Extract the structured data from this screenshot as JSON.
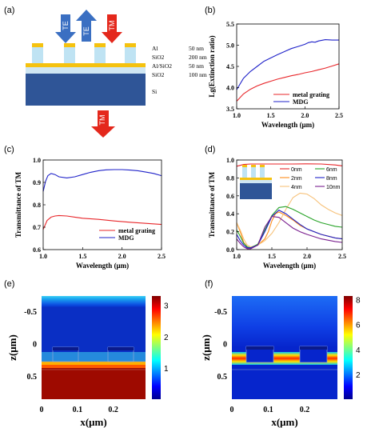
{
  "colors": {
    "red": "#e8262a",
    "blue": "#1f22c9",
    "arrow_blue": "#3a6fc2",
    "arrow_red": "#e4281c",
    "gold": "#f5c20f",
    "light_blue": "#bfe3f3",
    "sio2_band": "#cfe6f3",
    "si": "#2f5597",
    "orange": "#ff8c1a",
    "green": "#27a327",
    "light_orange": "#f7c27a",
    "purple": "#7a1f8f"
  },
  "panel_a": {
    "label": "(a)",
    "arrows": [
      "TE",
      "TE",
      "TM"
    ],
    "bottom_arrow": "TM",
    "layers": [
      {
        "name": "Al",
        "value": "50 nm"
      },
      {
        "name": "SiO2",
        "value": "200 nm"
      },
      {
        "name": "Al/SiO2",
        "value": "50 nm"
      },
      {
        "name": "SiO2",
        "value": "100 nm"
      },
      {
        "name": "Si",
        "value": ""
      }
    ]
  },
  "chart_data": [
    {
      "id": "b",
      "type": "line",
      "label": "(b)",
      "xlabel": "Wavelength (μm)",
      "ylabel": "Lg(Extinction ratio)",
      "xlim": [
        1.0,
        2.5
      ],
      "ylim": [
        3.5,
        5.5
      ],
      "xticks": [
        "1.0",
        "1.5",
        "2.0",
        "2.5"
      ],
      "yticks": [
        "3.5",
        "4.0",
        "4.5",
        "5.0",
        "5.5"
      ],
      "legend": "bottom-right",
      "series": [
        {
          "name": "metal grating",
          "color": "red",
          "x": [
            1.0,
            1.1,
            1.2,
            1.3,
            1.4,
            1.5,
            1.6,
            1.7,
            1.8,
            1.9,
            2.0,
            2.1,
            2.2,
            2.3,
            2.4,
            2.5
          ],
          "y": [
            3.68,
            3.85,
            3.96,
            4.04,
            4.1,
            4.15,
            4.2,
            4.24,
            4.28,
            4.31,
            4.35,
            4.38,
            4.42,
            4.46,
            4.51,
            4.56
          ]
        },
        {
          "name": "MDG",
          "color": "blue",
          "x": [
            1.0,
            1.1,
            1.2,
            1.3,
            1.4,
            1.5,
            1.6,
            1.7,
            1.8,
            1.9,
            2.0,
            2.05,
            2.1,
            2.15,
            2.2,
            2.3,
            2.4,
            2.5
          ],
          "y": [
            3.95,
            4.22,
            4.38,
            4.5,
            4.62,
            4.7,
            4.78,
            4.85,
            4.92,
            4.97,
            5.02,
            5.06,
            5.08,
            5.07,
            5.1,
            5.13,
            5.12,
            5.12
          ]
        }
      ]
    },
    {
      "id": "c",
      "type": "line",
      "label": "(c)",
      "xlabel": "Wavelength (μm)",
      "ylabel": "Transmittance of TM",
      "xlim": [
        1.0,
        2.5
      ],
      "ylim": [
        0.6,
        1.0
      ],
      "xticks": [
        "1.0",
        "1.5",
        "2.0",
        "2.5"
      ],
      "yticks": [
        "0.6",
        "0.7",
        "0.8",
        "0.9",
        "1.0"
      ],
      "legend": "bottom-right",
      "series": [
        {
          "name": "metal grating",
          "color": "red",
          "x": [
            1.0,
            1.05,
            1.1,
            1.15,
            1.2,
            1.3,
            1.4,
            1.5,
            1.7,
            1.9,
            2.1,
            2.3,
            2.5
          ],
          "y": [
            0.69,
            0.73,
            0.745,
            0.75,
            0.752,
            0.75,
            0.745,
            0.74,
            0.735,
            0.728,
            0.722,
            0.717,
            0.712
          ]
        },
        {
          "name": "MDG",
          "color": "blue",
          "x": [
            1.0,
            1.03,
            1.06,
            1.1,
            1.15,
            1.2,
            1.3,
            1.4,
            1.5,
            1.6,
            1.7,
            1.8,
            1.9,
            2.0,
            2.1,
            2.2,
            2.3,
            2.4,
            2.5
          ],
          "y": [
            0.86,
            0.905,
            0.93,
            0.94,
            0.935,
            0.925,
            0.92,
            0.925,
            0.935,
            0.945,
            0.952,
            0.956,
            0.957,
            0.957,
            0.955,
            0.952,
            0.946,
            0.94,
            0.93
          ]
        }
      ]
    },
    {
      "id": "d",
      "type": "line",
      "label": "(d)",
      "xlabel": "Wavelength (μm)",
      "ylabel": "Transmittance of TM",
      "xlim": [
        1.0,
        2.5
      ],
      "ylim": [
        0.0,
        1.0
      ],
      "xticks": [
        "1.0",
        "1.5",
        "2.0",
        "2.5"
      ],
      "yticks": [
        "0.0",
        "0.2",
        "0.4",
        "0.6",
        "0.8",
        "1.0"
      ],
      "legend": "top-right",
      "series": [
        {
          "name": "0nm",
          "color": "red",
          "x": [
            1.0,
            1.1,
            1.2,
            1.4,
            1.6,
            1.8,
            2.0,
            2.2,
            2.4,
            2.5
          ],
          "y": [
            0.93,
            0.95,
            0.955,
            0.955,
            0.955,
            0.955,
            0.957,
            0.955,
            0.945,
            0.935
          ]
        },
        {
          "name": "2nm",
          "color": "orange",
          "x": [
            1.0,
            1.05,
            1.1,
            1.15,
            1.2,
            1.3,
            1.4,
            1.45,
            1.5,
            1.55,
            1.6,
            1.7,
            1.8,
            1.9,
            2.0,
            2.1,
            2.2,
            2.3,
            2.4,
            2.5
          ],
          "y": [
            0.3,
            0.2,
            0.08,
            0.03,
            0.02,
            0.05,
            0.12,
            0.2,
            0.32,
            0.4,
            0.42,
            0.38,
            0.33,
            0.27,
            0.23,
            0.2,
            0.17,
            0.15,
            0.13,
            0.12
          ]
        },
        {
          "name": "4nm",
          "color": "light_orange",
          "x": [
            1.0,
            1.05,
            1.1,
            1.15,
            1.2,
            1.3,
            1.4,
            1.5,
            1.6,
            1.7,
            1.8,
            1.9,
            2.0,
            2.1,
            2.2,
            2.3,
            2.4,
            2.5
          ],
          "y": [
            0.3,
            0.22,
            0.12,
            0.05,
            0.03,
            0.05,
            0.1,
            0.18,
            0.3,
            0.45,
            0.58,
            0.63,
            0.62,
            0.57,
            0.5,
            0.45,
            0.41,
            0.38
          ]
        },
        {
          "name": "6nm",
          "color": "green",
          "x": [
            1.0,
            1.05,
            1.1,
            1.15,
            1.2,
            1.3,
            1.4,
            1.5,
            1.6,
            1.7,
            1.8,
            1.9,
            2.0,
            2.1,
            2.2,
            2.3,
            2.4,
            2.5
          ],
          "y": [
            0.22,
            0.15,
            0.07,
            0.03,
            0.02,
            0.06,
            0.22,
            0.38,
            0.47,
            0.48,
            0.45,
            0.41,
            0.37,
            0.33,
            0.3,
            0.28,
            0.26,
            0.25
          ]
        },
        {
          "name": "8nm",
          "color": "blue",
          "x": [
            1.0,
            1.05,
            1.1,
            1.15,
            1.2,
            1.3,
            1.4,
            1.5,
            1.6,
            1.7,
            1.8,
            1.9,
            2.0,
            2.2,
            2.4,
            2.5
          ],
          "y": [
            0.17,
            0.1,
            0.05,
            0.02,
            0.02,
            0.05,
            0.2,
            0.37,
            0.44,
            0.4,
            0.34,
            0.28,
            0.23,
            0.17,
            0.13,
            0.12
          ]
        },
        {
          "name": "10nm",
          "color": "purple",
          "x": [
            1.0,
            1.05,
            1.1,
            1.15,
            1.2,
            1.3,
            1.4,
            1.5,
            1.6,
            1.7,
            1.8,
            1.9,
            2.0,
            2.2,
            2.4,
            2.5
          ],
          "y": [
            0.12,
            0.07,
            0.03,
            0.01,
            0.01,
            0.05,
            0.25,
            0.37,
            0.36,
            0.3,
            0.24,
            0.2,
            0.17,
            0.12,
            0.09,
            0.08
          ]
        }
      ]
    },
    {
      "id": "e",
      "type": "heatmap",
      "label": "(e)",
      "xlabel": "x(μm)",
      "ylabel": "z(μm)",
      "xlim": [
        0,
        0.29
      ],
      "ylim": [
        -0.75,
        0.85
      ],
      "xticks": [
        "0",
        "0.1",
        "0.2"
      ],
      "yticks": [
        "-0.5",
        "0",
        "0.5"
      ],
      "colorbar_ticks": [
        "1",
        "2",
        "3"
      ],
      "colorbar_range": [
        0,
        3.3
      ]
    },
    {
      "id": "f",
      "type": "heatmap",
      "label": "(f)",
      "xlabel": "x(μm)",
      "ylabel": "z(μm)",
      "xlim": [
        0,
        0.29
      ],
      "ylim": [
        -0.75,
        0.85
      ],
      "xticks": [
        "0",
        "0.1",
        "0.2"
      ],
      "yticks": [
        "-0.5",
        "0",
        "0.5"
      ],
      "colorbar_ticks": [
        "2",
        "4",
        "6",
        "8"
      ],
      "colorbar_range": [
        0,
        8.3
      ]
    }
  ]
}
